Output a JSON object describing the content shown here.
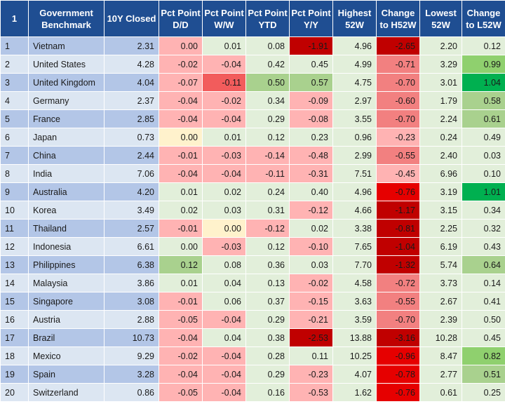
{
  "chart_data": {
    "type": "table",
    "columns": [
      "1",
      "Government Benchmark",
      "10Y Closed",
      "Pct Point D/D",
      "Pct Point W/W",
      "Pct Point YTD",
      "Pct Point Y/Y",
      "Highest 52W",
      "Change to H52W",
      "Lowest 52W",
      "Change to L52W"
    ],
    "rows": [
      [
        "1",
        "Vietnam",
        "2.31",
        "0.00",
        "0.01",
        "0.08",
        "-1.91",
        "4.96",
        "-2.65",
        "2.20",
        "0.12"
      ],
      [
        "2",
        "United States",
        "4.28",
        "-0.02",
        "-0.04",
        "0.42",
        "0.45",
        "4.99",
        "-0.71",
        "3.29",
        "0.99"
      ],
      [
        "3",
        "United Kingdom",
        "4.04",
        "-0.07",
        "-0.11",
        "0.50",
        "0.57",
        "4.75",
        "-0.70",
        "3.01",
        "1.04"
      ],
      [
        "4",
        "Germany",
        "2.37",
        "-0.04",
        "-0.02",
        "0.34",
        "-0.09",
        "2.97",
        "-0.60",
        "1.79",
        "0.58"
      ],
      [
        "5",
        "France",
        "2.85",
        "-0.04",
        "-0.04",
        "0.29",
        "-0.08",
        "3.55",
        "-0.70",
        "2.24",
        "0.61"
      ],
      [
        "6",
        "Japan",
        "0.73",
        "0.00",
        "0.01",
        "0.12",
        "0.23",
        "0.96",
        "-0.23",
        "0.24",
        "0.49"
      ],
      [
        "7",
        "China",
        "2.44",
        "-0.01",
        "-0.03",
        "-0.14",
        "-0.48",
        "2.99",
        "-0.55",
        "2.40",
        "0.03"
      ],
      [
        "8",
        "India",
        "7.06",
        "-0.04",
        "-0.04",
        "-0.11",
        "-0.31",
        "7.51",
        "-0.45",
        "6.96",
        "0.10"
      ],
      [
        "9",
        "Australia",
        "4.20",
        "0.01",
        "0.02",
        "0.24",
        "0.40",
        "4.96",
        "-0.76",
        "3.19",
        "1.01"
      ],
      [
        "10",
        "Korea",
        "3.49",
        "0.02",
        "0.03",
        "0.31",
        "-0.12",
        "4.66",
        "-1.17",
        "3.15",
        "0.34"
      ],
      [
        "11",
        "Thailand",
        "2.57",
        "-0.01",
        "0.00",
        "-0.12",
        "0.02",
        "3.38",
        "-0.81",
        "2.25",
        "0.32"
      ],
      [
        "12",
        "Indonesia",
        "6.61",
        "0.00",
        "-0.03",
        "0.12",
        "-0.10",
        "7.65",
        "-1.04",
        "6.19",
        "0.43"
      ],
      [
        "13",
        "Philippines",
        "6.38",
        "0.12",
        "0.08",
        "0.36",
        "0.03",
        "7.70",
        "-1.32",
        "5.74",
        "0.64"
      ],
      [
        "14",
        "Malaysia",
        "3.86",
        "0.01",
        "0.04",
        "0.13",
        "-0.02",
        "4.58",
        "-0.72",
        "3.73",
        "0.14"
      ],
      [
        "15",
        "Singapore",
        "3.08",
        "-0.01",
        "0.06",
        "0.37",
        "-0.15",
        "3.63",
        "-0.55",
        "2.67",
        "0.41"
      ],
      [
        "16",
        "Austria",
        "2.88",
        "-0.05",
        "-0.04",
        "0.29",
        "-0.21",
        "3.59",
        "-0.70",
        "2.39",
        "0.50"
      ],
      [
        "17",
        "Brazil",
        "10.73",
        "-0.04",
        "0.04",
        "0.38",
        "-2.53",
        "13.88",
        "-3.16",
        "10.28",
        "0.45"
      ],
      [
        "18",
        "Mexico",
        "9.29",
        "-0.02",
        "-0.04",
        "0.28",
        "0.11",
        "10.25",
        "-0.96",
        "8.47",
        "0.82"
      ],
      [
        "19",
        "Spain",
        "3.28",
        "-0.04",
        "-0.04",
        "0.29",
        "-0.23",
        "4.07",
        "-0.78",
        "2.77",
        "0.51"
      ],
      [
        "20",
        "Switzerland",
        "0.86",
        "-0.05",
        "-0.04",
        "0.16",
        "-0.53",
        "1.62",
        "-0.76",
        "0.61",
        "0.25"
      ]
    ],
    "cell_colors": [
      [
        null,
        null,
        null,
        "#ffb3b3",
        "#e2efda",
        "#e2efda",
        "#c00000",
        "#e2efda",
        "#c00000",
        "#e2efda",
        "#e2efda"
      ],
      [
        null,
        null,
        null,
        "#ffb3b3",
        "#ffb3b3",
        "#e2efda",
        "#e2efda",
        "#e2efda",
        "#f28080",
        "#e2efda",
        "#8fd06e"
      ],
      [
        null,
        null,
        null,
        "#ffb3b3",
        "#f25c5c",
        "#a9d18e",
        "#a9d18e",
        "#e2efda",
        "#f28080",
        "#e2efda",
        "#00b050"
      ],
      [
        null,
        null,
        null,
        "#ffb3b3",
        "#ffb3b3",
        "#e2efda",
        "#ffb3b3",
        "#e2efda",
        "#f28080",
        "#e2efda",
        "#a9d18e"
      ],
      [
        null,
        null,
        null,
        "#ffb3b3",
        "#ffb3b3",
        "#e2efda",
        "#ffb3b3",
        "#e2efda",
        "#f28080",
        "#e2efda",
        "#a9d18e"
      ],
      [
        null,
        null,
        null,
        "#fff2cc",
        "#e2efda",
        "#e2efda",
        "#e2efda",
        "#e2efda",
        "#ffb3b3",
        "#e2efda",
        "#e2efda"
      ],
      [
        null,
        null,
        null,
        "#ffb3b3",
        "#ffb3b3",
        "#ffb3b3",
        "#ffb3b3",
        "#e2efda",
        "#f28080",
        "#e2efda",
        "#e2efda"
      ],
      [
        null,
        null,
        null,
        "#ffb3b3",
        "#ffb3b3",
        "#ffb3b3",
        "#ffb3b3",
        "#e2efda",
        "#ffb3b3",
        "#e2efda",
        "#e2efda"
      ],
      [
        null,
        null,
        null,
        "#e2efda",
        "#e2efda",
        "#e2efda",
        "#e2efda",
        "#e2efda",
        "#e60000",
        "#e2efda",
        "#00b050"
      ],
      [
        null,
        null,
        null,
        "#e2efda",
        "#e2efda",
        "#e2efda",
        "#ffb3b3",
        "#e2efda",
        "#c00000",
        "#e2efda",
        "#e2efda"
      ],
      [
        null,
        null,
        null,
        "#ffb3b3",
        "#fff2cc",
        "#ffb3b3",
        "#e2efda",
        "#e2efda",
        "#c00000",
        "#e2efda",
        "#e2efda"
      ],
      [
        null,
        null,
        null,
        "#e2efda",
        "#ffb3b3",
        "#e2efda",
        "#ffb3b3",
        "#e2efda",
        "#c00000",
        "#e2efda",
        "#e2efda"
      ],
      [
        null,
        null,
        null,
        "#a9d18e",
        "#e2efda",
        "#e2efda",
        "#e2efda",
        "#e2efda",
        "#c00000",
        "#e2efda",
        "#a9d18e"
      ],
      [
        null,
        null,
        null,
        "#e2efda",
        "#e2efda",
        "#e2efda",
        "#ffb3b3",
        "#e2efda",
        "#f28080",
        "#e2efda",
        "#e2efda"
      ],
      [
        null,
        null,
        null,
        "#ffb3b3",
        "#e2efda",
        "#e2efda",
        "#ffb3b3",
        "#e2efda",
        "#f28080",
        "#e2efda",
        "#e2efda"
      ],
      [
        null,
        null,
        null,
        "#ffb3b3",
        "#ffb3b3",
        "#e2efda",
        "#ffb3b3",
        "#e2efda",
        "#f28080",
        "#e2efda",
        "#e2efda"
      ],
      [
        null,
        null,
        null,
        "#ffb3b3",
        "#e2efda",
        "#e2efda",
        "#c00000",
        "#e2efda",
        "#c00000",
        "#e2efda",
        "#e2efda"
      ],
      [
        null,
        null,
        null,
        "#ffb3b3",
        "#ffb3b3",
        "#e2efda",
        "#e2efda",
        "#e2efda",
        "#e60000",
        "#e2efda",
        "#8fd06e"
      ],
      [
        null,
        null,
        null,
        "#ffb3b3",
        "#ffb3b3",
        "#e2efda",
        "#ffb3b3",
        "#e2efda",
        "#e60000",
        "#e2efda",
        "#a9d18e"
      ],
      [
        null,
        null,
        null,
        "#ffb3b3",
        "#ffb3b3",
        "#e2efda",
        "#ffb3b3",
        "#e2efda",
        "#e60000",
        "#e2efda",
        "#e2efda"
      ]
    ]
  },
  "colors": {
    "header_bg": "#1f4e92",
    "row_odd_bg": "#b3c6e7",
    "row_even_bg": "#dce6f2"
  }
}
